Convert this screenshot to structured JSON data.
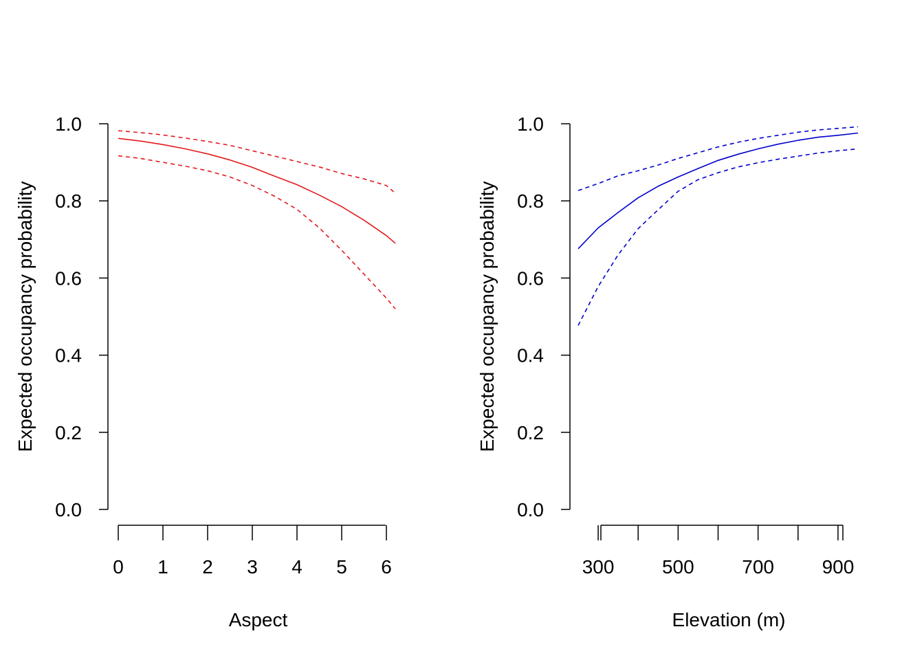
{
  "chart_data": [
    {
      "type": "line",
      "title": "",
      "xlabel": "Aspect",
      "ylabel": "Expected occupancy probability",
      "xlim": [
        0,
        6.2
      ],
      "ylim": [
        0,
        1
      ],
      "x_ticks": [
        "0",
        "1",
        "2",
        "3",
        "4",
        "5",
        "6"
      ],
      "y_ticks": [
        "0.0",
        "0.2",
        "0.4",
        "0.6",
        "0.8",
        "1.0"
      ],
      "grid": false,
      "legend": "none",
      "color": "#E31A1C",
      "x": [
        0,
        0.5,
        1,
        1.5,
        2,
        2.5,
        3,
        3.5,
        4,
        4.5,
        5,
        5.5,
        6,
        6.2
      ],
      "series": [
        {
          "role": "estimate",
          "style": "solid",
          "values": [
            0.962,
            0.955,
            0.946,
            0.935,
            0.922,
            0.906,
            0.887,
            0.864,
            0.842,
            0.815,
            0.785,
            0.75,
            0.71,
            0.69
          ]
        },
        {
          "role": "upper",
          "style": "dashed",
          "values": [
            0.982,
            0.977,
            0.971,
            0.963,
            0.954,
            0.944,
            0.93,
            0.916,
            0.902,
            0.888,
            0.871,
            0.857,
            0.84,
            0.82
          ]
        },
        {
          "role": "lower",
          "style": "dashed",
          "values": [
            0.917,
            0.91,
            0.9,
            0.89,
            0.878,
            0.862,
            0.84,
            0.812,
            0.778,
            0.73,
            0.672,
            0.61,
            0.548,
            0.52
          ]
        }
      ]
    },
    {
      "type": "line",
      "title": "",
      "xlabel": "Elevation (m)",
      "ylabel": "Expected occupancy probability",
      "xlim": [
        250,
        950
      ],
      "ylim": [
        0,
        1
      ],
      "x_ticks": [
        "300",
        "500",
        "700",
        "900"
      ],
      "x_minor_ticks": [
        300,
        400,
        500,
        600,
        700,
        800,
        900
      ],
      "y_ticks": [
        "0.0",
        "0.2",
        "0.4",
        "0.6",
        "0.8",
        "1.0"
      ],
      "grid": false,
      "legend": "none",
      "color": "#0000CD",
      "x": [
        250,
        300,
        350,
        400,
        450,
        500,
        550,
        600,
        650,
        700,
        750,
        800,
        850,
        900,
        950
      ],
      "series": [
        {
          "role": "estimate",
          "style": "solid",
          "values": [
            0.676,
            0.73,
            0.77,
            0.808,
            0.838,
            0.862,
            0.884,
            0.905,
            0.921,
            0.935,
            0.947,
            0.957,
            0.965,
            0.97,
            0.976
          ]
        },
        {
          "role": "upper",
          "style": "dashed",
          "values": [
            0.827,
            0.845,
            0.865,
            0.878,
            0.893,
            0.91,
            0.925,
            0.94,
            0.952,
            0.962,
            0.97,
            0.978,
            0.984,
            0.988,
            0.992
          ]
        },
        {
          "role": "lower",
          "style": "dashed",
          "values": [
            0.477,
            0.578,
            0.66,
            0.728,
            0.777,
            0.825,
            0.855,
            0.873,
            0.888,
            0.899,
            0.908,
            0.916,
            0.924,
            0.93,
            0.935
          ]
        }
      ]
    }
  ]
}
